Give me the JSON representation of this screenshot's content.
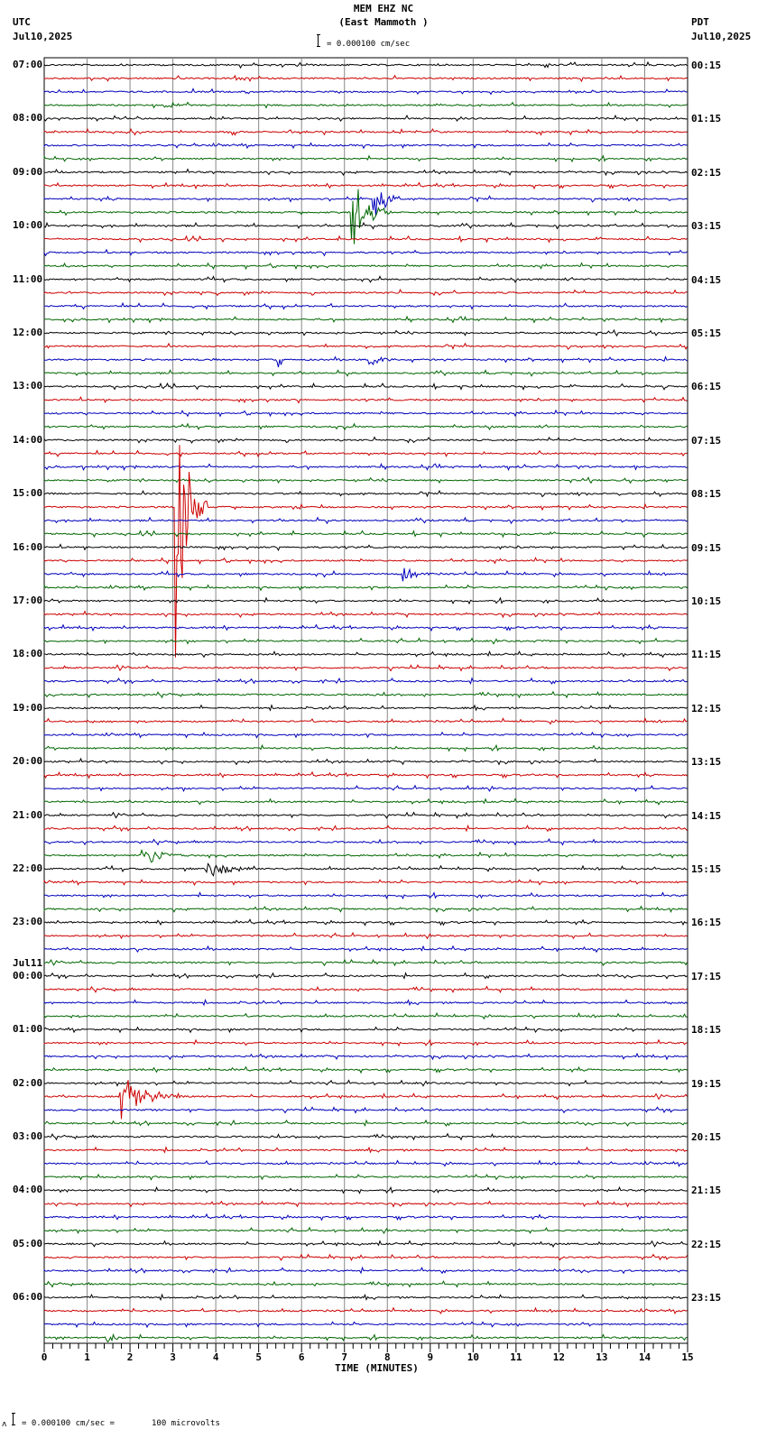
{
  "header": {
    "station": "MEM EHZ NC",
    "location": "(East Mammoth )",
    "scale_text": "= 0.000100 cm/sec",
    "left_tz": "UTC",
    "left_date": "Jul10,2025",
    "right_tz": "PDT",
    "right_date": "Jul10,2025"
  },
  "footer": {
    "scale_prefix": "= 0.000100 cm/sec =",
    "scale_value": "100 microvolts"
  },
  "colors": {
    "trace_cycle": [
      "#000000",
      "#cc0000",
      "#0000bb",
      "#006600"
    ],
    "grid": "#888888",
    "axis": "#000000"
  },
  "chart_data": {
    "type": "line",
    "title": "MEM EHZ NC (East Mammoth ) helicorder",
    "xlabel": "TIME (MINUTES)",
    "ylabel": "",
    "xlim": [
      0,
      15
    ],
    "x_ticks": [
      "0",
      "1",
      "2",
      "3",
      "4",
      "5",
      "6",
      "7",
      "8",
      "9",
      "10",
      "11",
      "12",
      "13",
      "14",
      "15"
    ],
    "minor_ticks_per_minute": 5,
    "traces_per_hour": 4,
    "trace_count": 96,
    "left_labels": [
      {
        "trace": 0,
        "text": "07:00"
      },
      {
        "trace": 4,
        "text": "08:00"
      },
      {
        "trace": 8,
        "text": "09:00"
      },
      {
        "trace": 12,
        "text": "10:00"
      },
      {
        "trace": 16,
        "text": "11:00"
      },
      {
        "trace": 20,
        "text": "12:00"
      },
      {
        "trace": 24,
        "text": "13:00"
      },
      {
        "trace": 28,
        "text": "14:00"
      },
      {
        "trace": 32,
        "text": "15:00"
      },
      {
        "trace": 36,
        "text": "16:00"
      },
      {
        "trace": 40,
        "text": "17:00"
      },
      {
        "trace": 44,
        "text": "18:00"
      },
      {
        "trace": 48,
        "text": "19:00"
      },
      {
        "trace": 52,
        "text": "20:00"
      },
      {
        "trace": 56,
        "text": "21:00"
      },
      {
        "trace": 60,
        "text": "22:00"
      },
      {
        "trace": 64,
        "text": "23:00"
      },
      {
        "trace": 68,
        "text": "00:00",
        "date": "Jul11"
      },
      {
        "trace": 72,
        "text": "01:00"
      },
      {
        "trace": 76,
        "text": "02:00"
      },
      {
        "trace": 80,
        "text": "03:00"
      },
      {
        "trace": 84,
        "text": "04:00"
      },
      {
        "trace": 88,
        "text": "05:00"
      },
      {
        "trace": 92,
        "text": "06:00"
      }
    ],
    "right_labels": [
      "00:15",
      "01:15",
      "02:15",
      "03:15",
      "04:15",
      "05:15",
      "06:15",
      "07:15",
      "08:15",
      "09:15",
      "10:15",
      "11:15",
      "12:15",
      "13:15",
      "14:15",
      "15:15",
      "16:15",
      "17:15",
      "18:15",
      "19:15",
      "20:15",
      "21:15",
      "22:15",
      "23:15"
    ],
    "events": [
      {
        "trace": 11,
        "minute": 7.2,
        "amp": 60,
        "dur": 0.9,
        "note": "large green offset pulses ~09:45 UTC"
      },
      {
        "trace": 10,
        "minute": 7.7,
        "amp": 55,
        "dur": 0.6
      },
      {
        "trace": 22,
        "minute": 5.5,
        "amp": 16,
        "dur": 0.1
      },
      {
        "trace": 22,
        "minute": 7.6,
        "amp": 12,
        "dur": 0.8
      },
      {
        "trace": 33,
        "minute": 3.1,
        "amp": 200,
        "dur": 0.7,
        "note": "large red spike ~15:15 UTC"
      },
      {
        "trace": 38,
        "minute": 8.4,
        "amp": 12,
        "dur": 0.8
      },
      {
        "trace": 59,
        "minute": 2.3,
        "amp": 20,
        "dur": 1.3
      },
      {
        "trace": 60,
        "minute": 3.8,
        "amp": 18,
        "dur": 1.3
      },
      {
        "trace": 77,
        "minute": 1.8,
        "amp": 28,
        "dur": 1.6
      },
      {
        "trace": 95,
        "minute": 1.5,
        "amp": 9,
        "dur": 0.5
      }
    ]
  }
}
